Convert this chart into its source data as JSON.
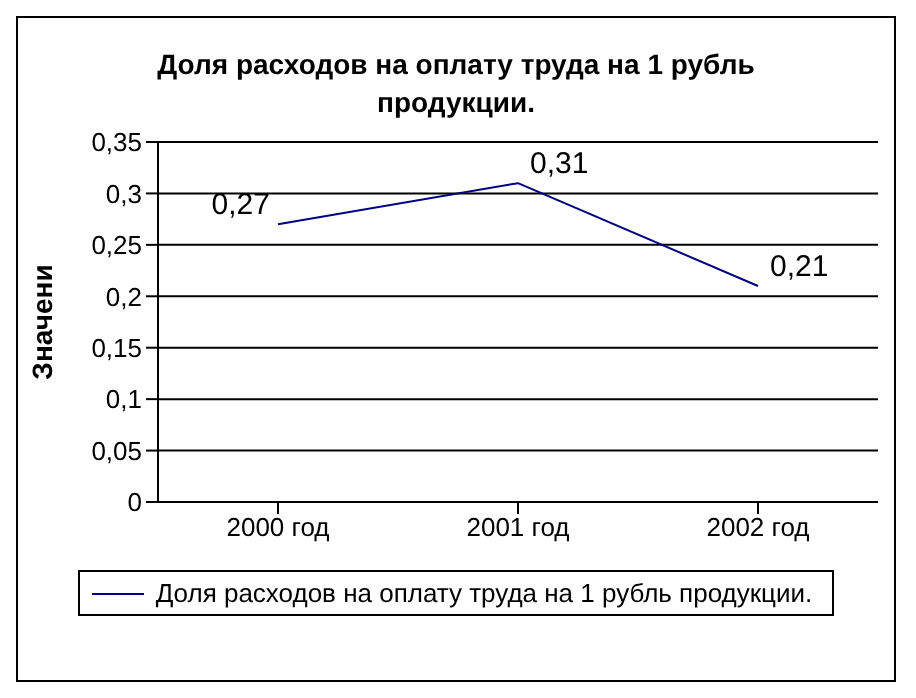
{
  "chart_data": {
    "type": "line",
    "title": "Доля расходов на оплату труда на 1 рубль продукции.",
    "ylabel": "Значени",
    "categories": [
      "2000 год",
      "2001 год",
      "2002 год"
    ],
    "series": [
      {
        "name": "Доля расходов на оплату труда на 1 рубль продукции.",
        "color": "#000080",
        "values": [
          0.27,
          0.31,
          0.21
        ],
        "value_labels": [
          "0,27",
          "0,31",
          "0,21"
        ]
      }
    ],
    "ylim": [
      0,
      0.35
    ],
    "yticks": [
      {
        "value": 0,
        "label": "0"
      },
      {
        "value": 0.05,
        "label": "0,05"
      },
      {
        "value": 0.1,
        "label": "0,1"
      },
      {
        "value": 0.15,
        "label": "0,15"
      },
      {
        "value": 0.2,
        "label": "0,2"
      },
      {
        "value": 0.25,
        "label": "0,25"
      },
      {
        "value": 0.3,
        "label": "0,3"
      },
      {
        "value": 0.35,
        "label": "0,35"
      }
    ],
    "grid": "y",
    "legend": "bottom",
    "marker": "none",
    "line_style": "solid"
  }
}
